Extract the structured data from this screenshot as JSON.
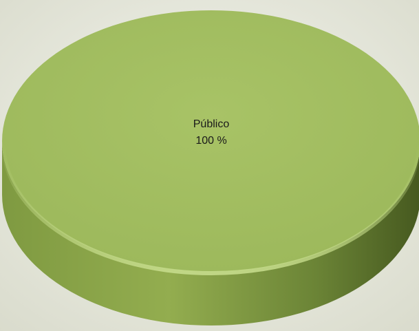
{
  "chart_data": {
    "type": "pie",
    "three_d": true,
    "slices": [
      {
        "category": "Público",
        "value": 100,
        "label_pct": "100 %"
      }
    ],
    "legend": "none",
    "colors": {
      "background": "#e9eadf",
      "slice_top": "#a4bf62",
      "slice_side_light": "#8ca64a",
      "slice_side_dark": "#4f6229",
      "label_text": "#1a1a1a"
    }
  }
}
